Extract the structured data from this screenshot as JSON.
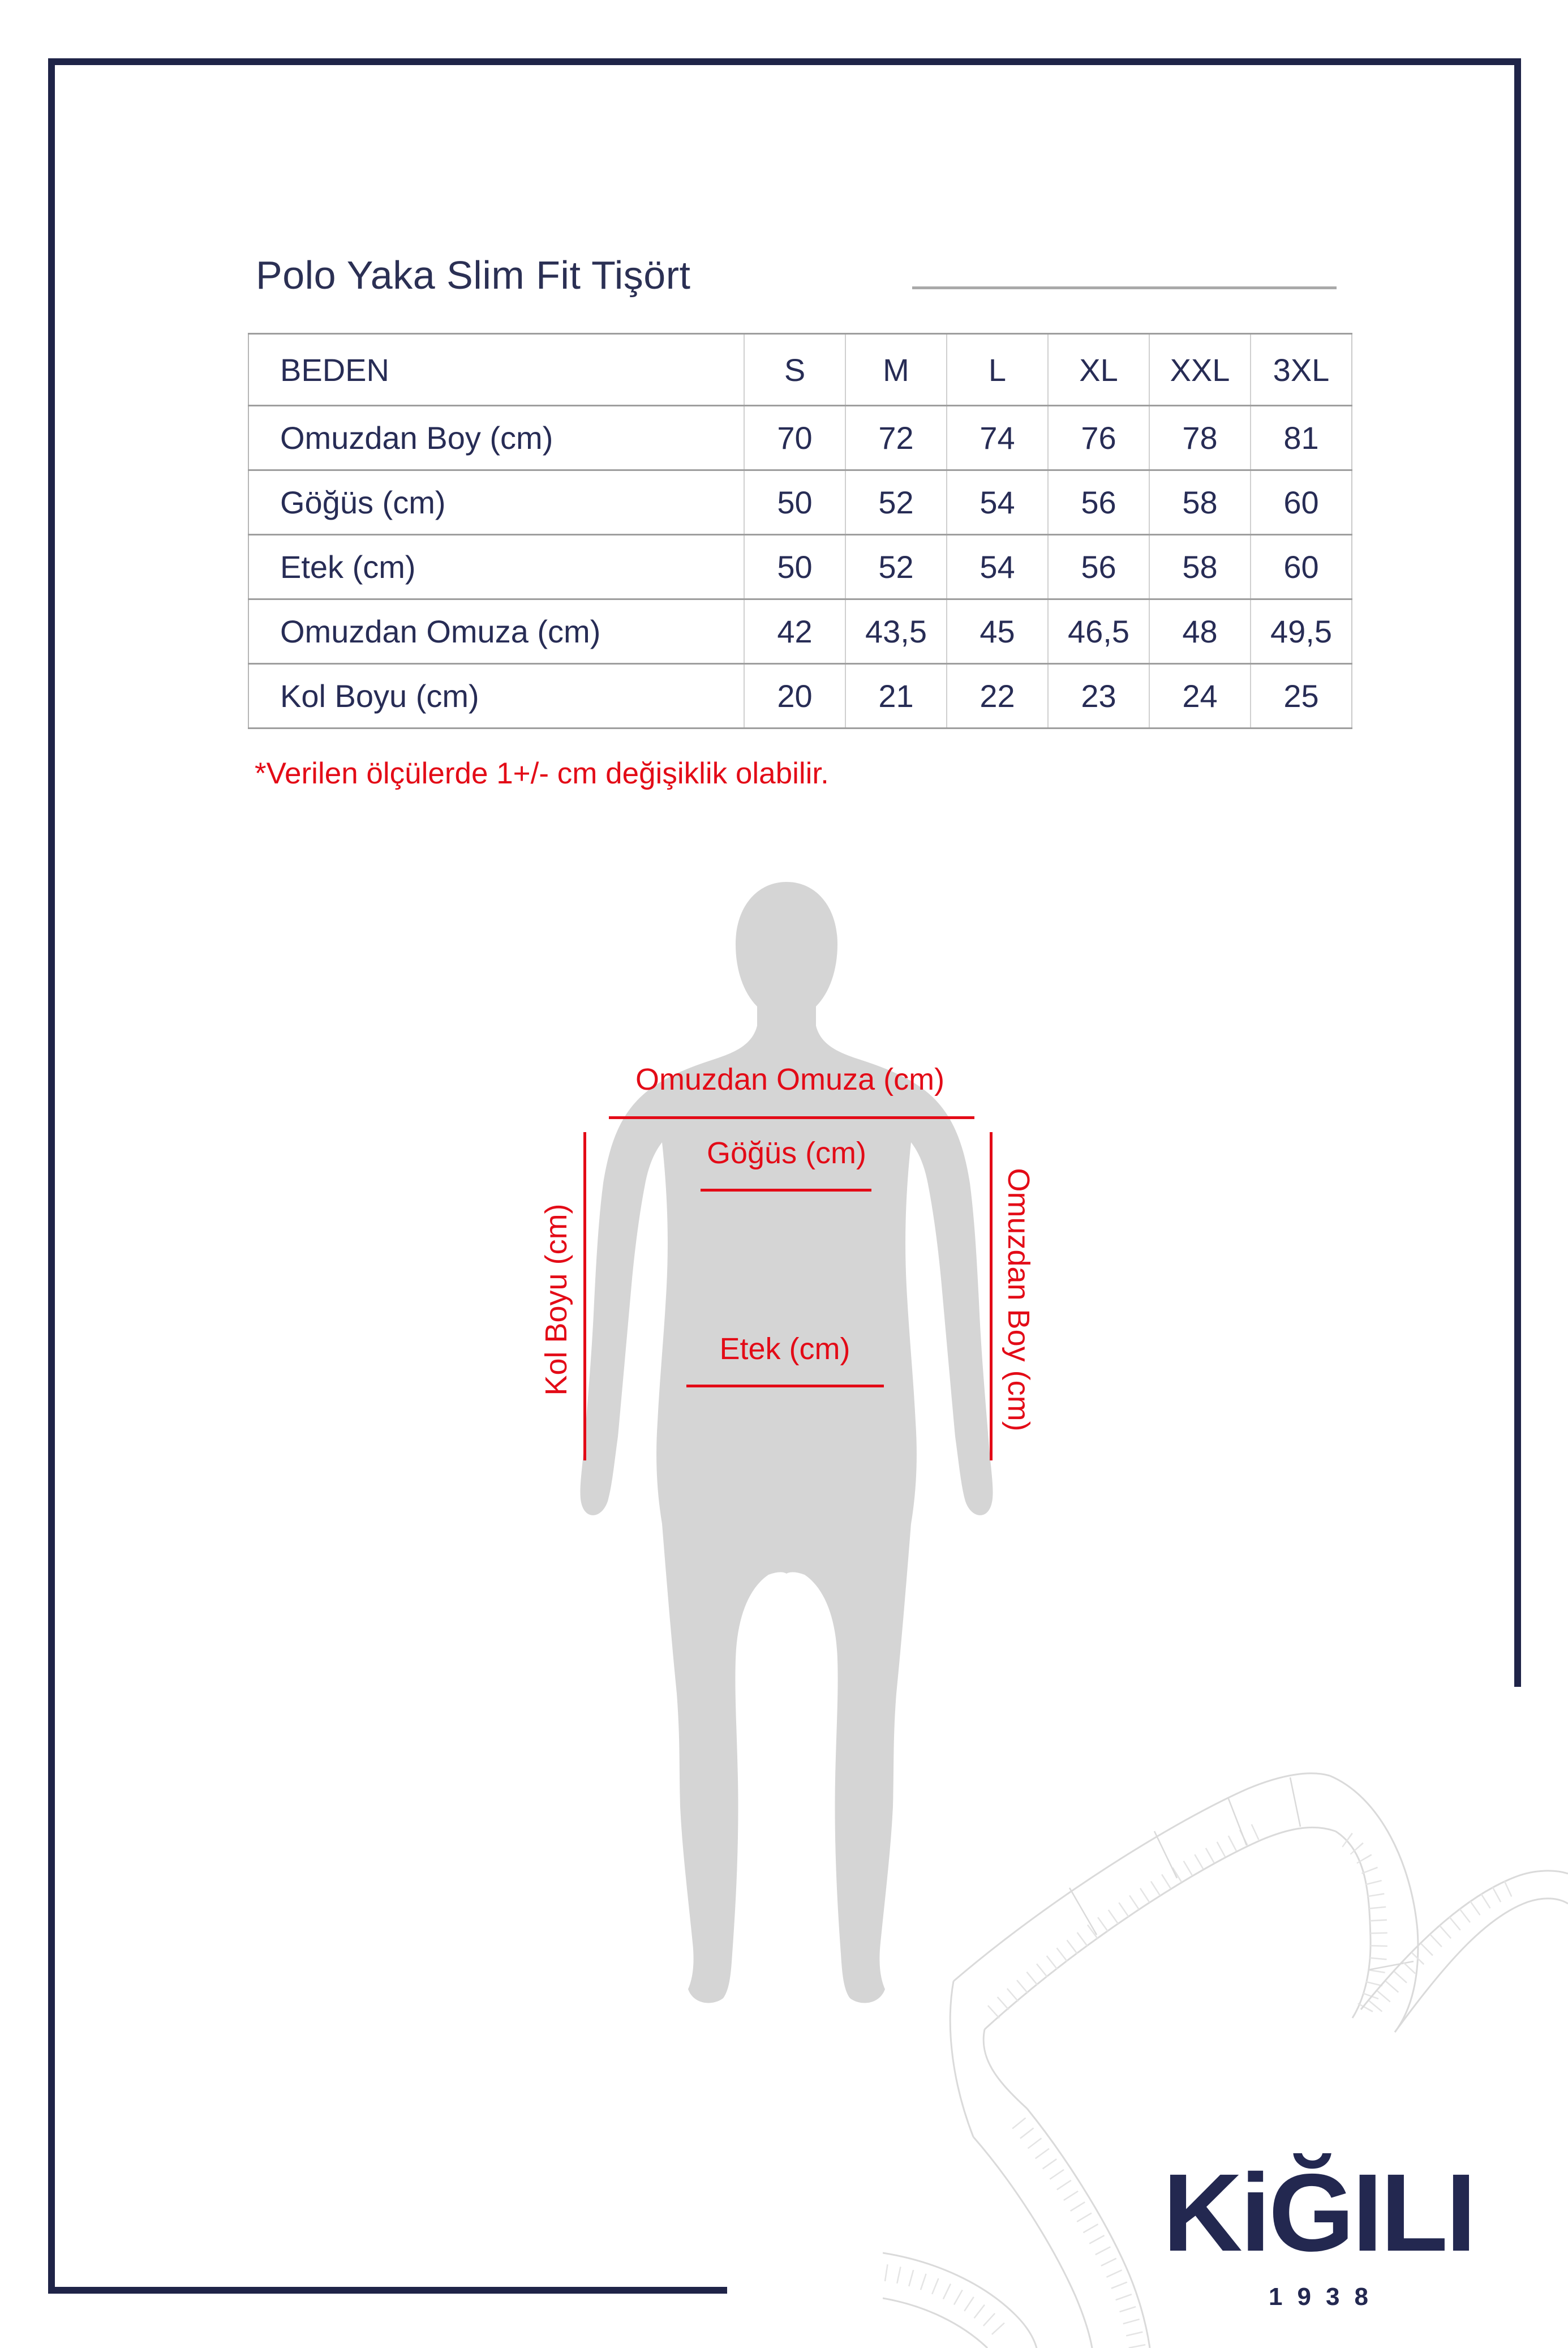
{
  "page": {
    "title": "Polo Yaka Slim Fit Tişört",
    "note": "*Verilen ölçülerde 1+/- cm değişiklik olabilir."
  },
  "size_table": {
    "header": [
      "BEDEN",
      "S",
      "M",
      "L",
      "XL",
      "XXL",
      "3XL"
    ],
    "rows": [
      {
        "label": "Omuzdan Boy (cm)",
        "values": [
          "70",
          "72",
          "74",
          "76",
          "78",
          "81"
        ]
      },
      {
        "label": "Göğüs (cm)",
        "values": [
          "50",
          "52",
          "54",
          "56",
          "58",
          "60"
        ]
      },
      {
        "label": "Etek (cm)",
        "values": [
          "50",
          "52",
          "54",
          "56",
          "58",
          "60"
        ]
      },
      {
        "label": "Omuzdan Omuza (cm)",
        "values": [
          "42",
          "43,5",
          "45",
          "46,5",
          "48",
          "49,5"
        ]
      },
      {
        "label": "Kol Boyu (cm)",
        "values": [
          "20",
          "21",
          "22",
          "23",
          "24",
          "25"
        ]
      }
    ]
  },
  "diagram": {
    "labels": {
      "shoulder_to_shoulder": "Omuzdan Omuza (cm)",
      "chest": "Göğüs (cm)",
      "hem": "Etek (cm)",
      "sleeve": "Kol Boyu (cm)",
      "shoulder_length": "Omuzdan Boy (cm)"
    }
  },
  "brand": {
    "logo": "KiĞILI",
    "year": "1938"
  },
  "colors": {
    "navy": "#232850",
    "red": "#e30b17",
    "silhouette_gray": "#d5d5d5",
    "table_border_gray": "#9e9e9e",
    "tape_gray": "#dadada",
    "title_line_gray": "#a9a9a9"
  }
}
